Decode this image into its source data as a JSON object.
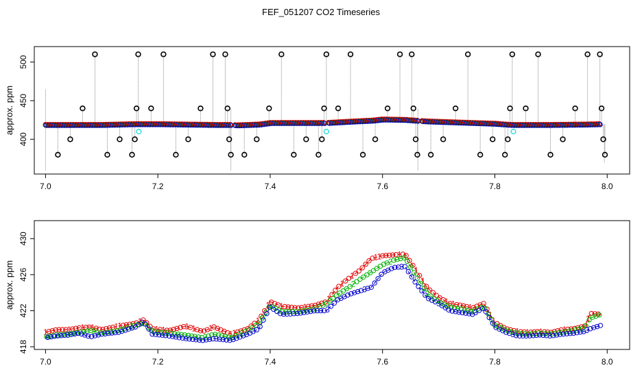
{
  "title": "FEF_051207  CO2 Timeseries",
  "colors": {
    "black": "#000000",
    "red": "#e00000",
    "green": "#00b000",
    "blue": "#0000cc",
    "cyan": "#33dddd",
    "grey": "#888888"
  },
  "chart_data": [
    {
      "type": "scatter",
      "ylabel": "approx. ppm",
      "xlim": [
        6.98,
        8.04
      ],
      "ylim": [
        355,
        520
      ],
      "x_ticks": [
        7.0,
        7.2,
        7.4,
        7.6,
        7.8,
        8.0
      ],
      "x_tick_labels": [
        "7.0",
        "7.2",
        "7.4",
        "7.6",
        "7.8",
        "8.0"
      ],
      "y_ticks": [
        400,
        450,
        500
      ],
      "y_tick_labels": [
        "400",
        "450",
        "500"
      ],
      "baseline": [
        [
          7.0,
          418.5
        ],
        [
          7.1,
          418.5
        ],
        [
          7.16,
          419.5
        ],
        [
          7.2,
          419.5
        ],
        [
          7.3,
          418.5
        ],
        [
          7.33,
          418.5
        ],
        [
          7.34,
          418.0
        ],
        [
          7.38,
          419.0
        ],
        [
          7.4,
          421.0
        ],
        [
          7.45,
          421.0
        ],
        [
          7.5,
          421.0
        ],
        [
          7.55,
          423.0
        ],
        [
          7.58,
          424.0
        ],
        [
          7.6,
          425.5
        ],
        [
          7.64,
          425.0
        ],
        [
          7.66,
          424.0
        ],
        [
          7.68,
          423.0
        ],
        [
          7.72,
          422.0
        ],
        [
          7.76,
          421.0
        ],
        [
          7.8,
          420.0
        ],
        [
          7.83,
          418.5
        ],
        [
          7.9,
          418.5
        ],
        [
          7.96,
          419.0
        ],
        [
          7.99,
          419.5
        ]
      ],
      "outliers": [
        [
          7.022,
          380
        ],
        [
          7.044,
          400
        ],
        [
          7.066,
          440
        ],
        [
          7.088,
          510
        ],
        [
          7.11,
          380
        ],
        [
          7.132,
          400
        ],
        [
          7.154,
          380
        ],
        [
          7.159,
          400
        ],
        [
          7.162,
          440
        ],
        [
          7.165,
          510
        ],
        [
          7.188,
          440
        ],
        [
          7.21,
          510
        ],
        [
          7.232,
          380
        ],
        [
          7.254,
          400
        ],
        [
          7.276,
          440
        ],
        [
          7.298,
          510
        ],
        [
          7.32,
          510
        ],
        [
          7.324,
          440
        ],
        [
          7.327,
          400
        ],
        [
          7.33,
          380
        ],
        [
          7.354,
          380
        ],
        [
          7.376,
          400
        ],
        [
          7.398,
          440
        ],
        [
          7.42,
          510
        ],
        [
          7.442,
          380
        ],
        [
          7.464,
          400
        ],
        [
          7.486,
          380
        ],
        [
          7.492,
          400
        ],
        [
          7.496,
          440
        ],
        [
          7.5,
          510
        ],
        [
          7.521,
          440
        ],
        [
          7.543,
          510
        ],
        [
          7.565,
          380
        ],
        [
          7.587,
          400
        ],
        [
          7.609,
          440
        ],
        [
          7.631,
          510
        ],
        [
          7.652,
          510
        ],
        [
          7.655,
          440
        ],
        [
          7.659,
          400
        ],
        [
          7.662,
          380
        ],
        [
          7.686,
          380
        ],
        [
          7.708,
          400
        ],
        [
          7.73,
          440
        ],
        [
          7.752,
          510
        ],
        [
          7.774,
          380
        ],
        [
          7.796,
          400
        ],
        [
          7.818,
          380
        ],
        [
          7.823,
          400
        ],
        [
          7.827,
          440
        ],
        [
          7.831,
          510
        ],
        [
          7.855,
          440
        ],
        [
          7.877,
          510
        ],
        [
          7.899,
          380
        ],
        [
          7.921,
          400
        ],
        [
          7.943,
          440
        ],
        [
          7.965,
          510
        ],
        [
          7.987,
          510
        ],
        [
          7.99,
          440
        ],
        [
          7.993,
          400
        ],
        [
          7.996,
          380
        ]
      ],
      "cyan_points": [
        [
          7.166,
          410
        ],
        [
          7.5,
          410
        ],
        [
          7.833,
          410
        ]
      ]
    },
    {
      "type": "line",
      "ylabel": "approx. ppm",
      "xlim": [
        6.98,
        8.04
      ],
      "ylim": [
        417.7,
        432.0
      ],
      "x_ticks": [
        7.0,
        7.2,
        7.4,
        7.6,
        7.8,
        8.0
      ],
      "x_tick_labels": [
        "7.0",
        "7.2",
        "7.4",
        "7.6",
        "7.8",
        "8.0"
      ],
      "y_ticks": [
        418,
        422,
        426,
        430
      ],
      "y_tick_labels": [
        "418",
        "422",
        "426",
        "430"
      ],
      "x_range": [
        7.0,
        7.99
      ],
      "series": [
        {
          "values": [
            [
              7.0,
              419.6
            ],
            [
              7.02,
              419.9
            ],
            [
              7.04,
              419.9
            ],
            [
              7.06,
              420.1
            ],
            [
              7.08,
              420.2
            ],
            [
              7.1,
              419.9
            ],
            [
              7.13,
              420.3
            ],
            [
              7.16,
              420.6
            ],
            [
              7.175,
              421.0
            ],
            [
              7.19,
              420.0
            ],
            [
              7.22,
              419.8
            ],
            [
              7.25,
              420.3
            ],
            [
              7.28,
              419.7
            ],
            [
              7.3,
              420.2
            ],
            [
              7.33,
              419.4
            ],
            [
              7.36,
              420.0
            ],
            [
              7.38,
              421.0
            ],
            [
              7.4,
              423.0
            ],
            [
              7.42,
              422.5
            ],
            [
              7.45,
              422.3
            ],
            [
              7.48,
              422.6
            ],
            [
              7.5,
              423.0
            ],
            [
              7.52,
              424.6
            ],
            [
              7.54,
              425.6
            ],
            [
              7.56,
              426.5
            ],
            [
              7.58,
              427.8
            ],
            [
              7.6,
              428.1
            ],
            [
              7.62,
              428.2
            ],
            [
              7.64,
              428.3
            ],
            [
              7.66,
              426.5
            ],
            [
              7.68,
              424.5
            ],
            [
              7.7,
              423.5
            ],
            [
              7.72,
              422.8
            ],
            [
              7.74,
              422.6
            ],
            [
              7.76,
              422.3
            ],
            [
              7.78,
              422.8
            ],
            [
              7.8,
              420.7
            ],
            [
              7.82,
              420.0
            ],
            [
              7.84,
              419.7
            ],
            [
              7.86,
              419.6
            ],
            [
              7.88,
              419.7
            ],
            [
              7.9,
              419.6
            ],
            [
              7.92,
              419.9
            ],
            [
              7.94,
              420.0
            ],
            [
              7.96,
              420.3
            ],
            [
              7.97,
              421.7
            ],
            [
              7.99,
              421.6
            ]
          ]
        },
        {
          "values": [
            [
              7.0,
              419.1
            ],
            [
              7.02,
              419.3
            ],
            [
              7.04,
              419.4
            ],
            [
              7.06,
              419.6
            ],
            [
              7.08,
              419.8
            ],
            [
              7.1,
              419.5
            ],
            [
              7.13,
              419.8
            ],
            [
              7.16,
              420.4
            ],
            [
              7.175,
              420.6
            ],
            [
              7.19,
              419.7
            ],
            [
              7.22,
              419.5
            ],
            [
              7.25,
              419.3
            ],
            [
              7.28,
              419.0
            ],
            [
              7.3,
              419.4
            ],
            [
              7.33,
              419.0
            ],
            [
              7.36,
              419.8
            ],
            [
              7.38,
              420.6
            ],
            [
              7.4,
              422.6
            ],
            [
              7.42,
              421.9
            ],
            [
              7.45,
              421.9
            ],
            [
              7.48,
              422.2
            ],
            [
              7.5,
              422.8
            ],
            [
              7.52,
              423.8
            ],
            [
              7.54,
              424.6
            ],
            [
              7.56,
              425.5
            ],
            [
              7.58,
              426.3
            ],
            [
              7.6,
              427.1
            ],
            [
              7.62,
              427.6
            ],
            [
              7.64,
              427.9
            ],
            [
              7.66,
              425.8
            ],
            [
              7.68,
              423.9
            ],
            [
              7.7,
              423.0
            ],
            [
              7.72,
              422.4
            ],
            [
              7.74,
              422.2
            ],
            [
              7.76,
              421.9
            ],
            [
              7.78,
              422.5
            ],
            [
              7.8,
              420.4
            ],
            [
              7.82,
              419.8
            ],
            [
              7.84,
              419.5
            ],
            [
              7.86,
              419.4
            ],
            [
              7.88,
              419.5
            ],
            [
              7.9,
              419.4
            ],
            [
              7.92,
              419.6
            ],
            [
              7.94,
              419.8
            ],
            [
              7.96,
              420.1
            ],
            [
              7.97,
              421.2
            ],
            [
              7.99,
              421.6
            ]
          ]
        },
        {
          "values": [
            [
              7.0,
              419.0
            ],
            [
              7.02,
              419.2
            ],
            [
              7.04,
              419.3
            ],
            [
              7.06,
              419.5
            ],
            [
              7.08,
              419.1
            ],
            [
              7.1,
              419.4
            ],
            [
              7.13,
              419.6
            ],
            [
              7.16,
              420.2
            ],
            [
              7.175,
              420.8
            ],
            [
              7.19,
              419.4
            ],
            [
              7.22,
              419.2
            ],
            [
              7.25,
              418.9
            ],
            [
              7.28,
              418.7
            ],
            [
              7.3,
              418.9
            ],
            [
              7.33,
              418.7
            ],
            [
              7.36,
              419.4
            ],
            [
              7.38,
              420.0
            ],
            [
              7.4,
              422.4
            ],
            [
              7.42,
              421.6
            ],
            [
              7.45,
              421.7
            ],
            [
              7.48,
              422.0
            ],
            [
              7.5,
              422.0
            ],
            [
              7.52,
              423.2
            ],
            [
              7.54,
              423.8
            ],
            [
              7.56,
              424.2
            ],
            [
              7.58,
              424.6
            ],
            [
              7.6,
              426.2
            ],
            [
              7.62,
              426.8
            ],
            [
              7.64,
              426.9
            ],
            [
              7.66,
              425.0
            ],
            [
              7.68,
              423.4
            ],
            [
              7.7,
              422.8
            ],
            [
              7.72,
              422.0
            ],
            [
              7.74,
              421.8
            ],
            [
              7.76,
              421.6
            ],
            [
              7.78,
              422.3
            ],
            [
              7.8,
              420.2
            ],
            [
              7.82,
              419.6
            ],
            [
              7.84,
              419.2
            ],
            [
              7.86,
              419.2
            ],
            [
              7.88,
              419.3
            ],
            [
              7.9,
              419.2
            ],
            [
              7.92,
              419.4
            ],
            [
              7.94,
              419.5
            ],
            [
              7.96,
              419.7
            ],
            [
              7.97,
              420.0
            ],
            [
              7.99,
              420.4
            ]
          ]
        }
      ]
    }
  ]
}
